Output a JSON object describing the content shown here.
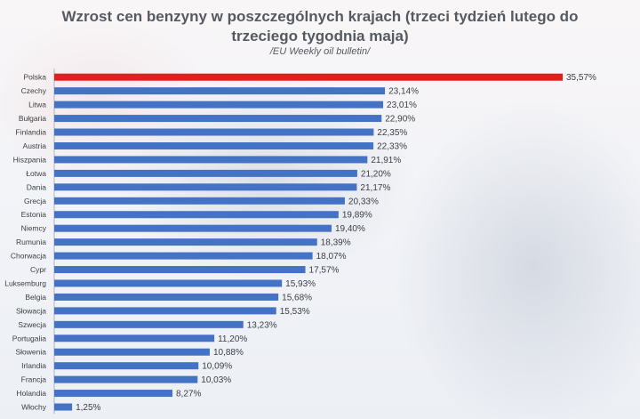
{
  "title_line1": "Wzrost cen benzyny w poszczególnych krajach (trzeci tydzień lutego do",
  "title_line2": "trzeciego tygodnia maja)",
  "subtitle": "/EU Weekly oil bulletin/",
  "colors": {
    "highlight": "#e41e1e",
    "bar": "#4472c4"
  },
  "chart_data": {
    "type": "bar",
    "orientation": "horizontal",
    "categories": [
      "Polska",
      "Czechy",
      "Litwa",
      "Bułgaria",
      "Finlandia",
      "Austria",
      "Hiszpania",
      "Łotwa",
      "Dania",
      "Grecja",
      "Estonia",
      "Niemcy",
      "Rumunia",
      "Chorwacja",
      "Cypr",
      "Luksemburg",
      "Belgia",
      "Słowacja",
      "Szwecja",
      "Portugalia",
      "Słowenia",
      "Irlandia",
      "Francja",
      "Holandia",
      "Włochy"
    ],
    "values": [
      35.57,
      23.14,
      23.01,
      22.9,
      22.35,
      22.33,
      21.91,
      21.2,
      21.17,
      20.33,
      19.89,
      19.4,
      18.39,
      18.07,
      17.57,
      15.93,
      15.68,
      15.53,
      13.23,
      11.2,
      10.88,
      10.09,
      10.03,
      8.27,
      1.25
    ],
    "value_labels": [
      "35,57%",
      "23,14%",
      "23,01%",
      "22,90%",
      "22,35%",
      "22,33%",
      "21,91%",
      "21,20%",
      "21,17%",
      "20,33%",
      "19,89%",
      "19,40%",
      "18,39%",
      "18,07%",
      "17,57%",
      "15,93%",
      "15,68%",
      "15,53%",
      "13,23%",
      "11,20%",
      "10,88%",
      "10,09%",
      "10,03%",
      "8,27%",
      "1,25%"
    ],
    "highlight_category": "Polska",
    "xlim": [
      0,
      35.57
    ],
    "grid": false,
    "legend": "none"
  }
}
